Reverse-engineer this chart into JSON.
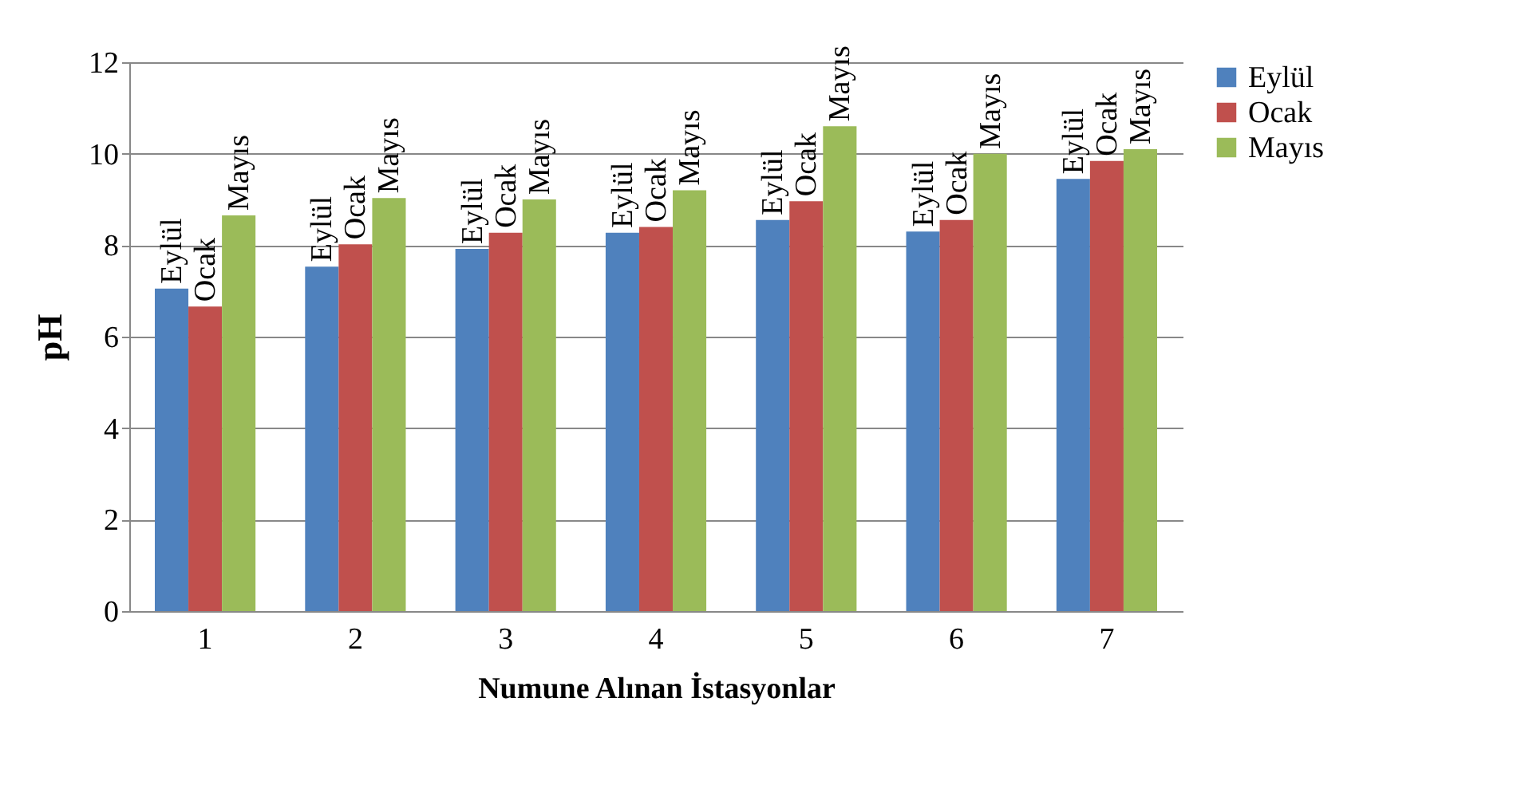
{
  "chart_data": {
    "type": "bar",
    "xlabel": "Numune Alınan İstasyonlar",
    "ylabel": "pH",
    "categories": [
      "1",
      "2",
      "3",
      "4",
      "5",
      "6",
      "7"
    ],
    "series": [
      {
        "name": "Eylül",
        "color": "#4f81bd",
        "values": [
          7.05,
          7.53,
          7.92,
          8.27,
          8.55,
          8.3,
          9.45
        ]
      },
      {
        "name": "Ocak",
        "color": "#c0504d",
        "values": [
          6.66,
          8.02,
          8.27,
          8.4,
          8.96,
          8.55,
          9.84
        ]
      },
      {
        "name": "Mayıs",
        "color": "#9bbb59",
        "values": [
          8.65,
          9.03,
          9.0,
          9.2,
          10.6,
          10.0,
          10.1
        ]
      }
    ],
    "ylim": [
      0,
      12
    ],
    "yticks": [
      0,
      2,
      4,
      6,
      8,
      10,
      12
    ],
    "grid": "y",
    "legend": "right"
  }
}
